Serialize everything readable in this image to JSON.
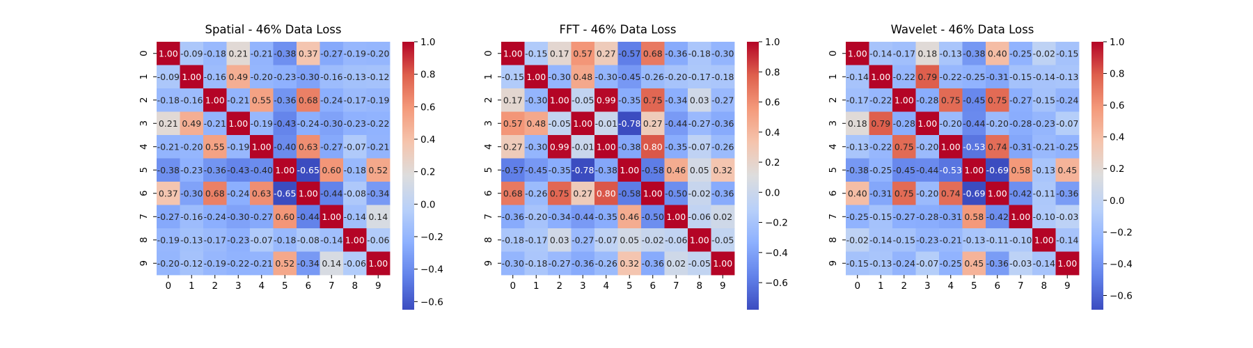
{
  "chart_data": [
    {
      "type": "heatmap",
      "title": "Spatial - 46% Data Loss",
      "x": [
        "0",
        "1",
        "2",
        "3",
        "4",
        "5",
        "6",
        "7",
        "8",
        "9"
      ],
      "y": [
        "0",
        "1",
        "2",
        "3",
        "4",
        "5",
        "6",
        "7",
        "8",
        "9"
      ],
      "values": [
        [
          1.0,
          -0.09,
          -0.18,
          0.21,
          -0.21,
          -0.38,
          0.37,
          -0.27,
          -0.19,
          -0.2
        ],
        [
          -0.09,
          1.0,
          -0.16,
          0.49,
          -0.2,
          -0.23,
          -0.3,
          -0.16,
          -0.13,
          -0.12
        ],
        [
          -0.18,
          -0.16,
          1.0,
          -0.21,
          0.55,
          -0.36,
          0.68,
          -0.24,
          -0.17,
          -0.19
        ],
        [
          0.21,
          0.49,
          -0.21,
          1.0,
          -0.19,
          -0.43,
          -0.24,
          -0.3,
          -0.23,
          -0.22
        ],
        [
          -0.21,
          -0.2,
          0.55,
          -0.19,
          1.0,
          -0.4,
          0.63,
          -0.27,
          -0.07,
          -0.21
        ],
        [
          -0.38,
          -0.23,
          -0.36,
          -0.43,
          -0.4,
          1.0,
          -0.65,
          0.6,
          -0.18,
          0.52
        ],
        [
          0.37,
          -0.3,
          0.68,
          -0.24,
          0.63,
          -0.65,
          1.0,
          -0.44,
          -0.08,
          -0.34
        ],
        [
          -0.27,
          -0.16,
          -0.24,
          -0.3,
          -0.27,
          0.6,
          -0.44,
          1.0,
          -0.14,
          0.14
        ],
        [
          -0.19,
          -0.13,
          -0.17,
          -0.23,
          -0.07,
          -0.18,
          -0.08,
          -0.14,
          1.0,
          -0.06
        ],
        [
          -0.2,
          -0.12,
          -0.19,
          -0.22,
          -0.21,
          0.52,
          -0.34,
          0.14,
          -0.06,
          1.0
        ]
      ],
      "vmin": -0.65,
      "vmax": 1.0,
      "colorbar_ticks": [
        -0.6,
        -0.4,
        -0.2,
        0.0,
        0.2,
        0.4,
        0.6,
        0.8,
        1.0
      ],
      "colorbar_labels": [
        "−0.6",
        "−0.4",
        "−0.2",
        "0.0",
        "0.2",
        "0.4",
        "0.6",
        "0.8",
        "1.0"
      ],
      "colormap": "coolwarm",
      "grid": false,
      "legend": "colorbar-right"
    },
    {
      "type": "heatmap",
      "title": "FFT - 46% Data Loss",
      "x": [
        "0",
        "1",
        "2",
        "3",
        "4",
        "5",
        "6",
        "7",
        "8",
        "9"
      ],
      "y": [
        "0",
        "1",
        "2",
        "3",
        "4",
        "5",
        "6",
        "7",
        "8",
        "9"
      ],
      "values": [
        [
          1.0,
          -0.15,
          0.17,
          0.57,
          0.27,
          -0.57,
          0.68,
          -0.36,
          -0.18,
          -0.3
        ],
        [
          -0.15,
          1.0,
          -0.3,
          0.48,
          -0.3,
          -0.45,
          -0.26,
          -0.2,
          -0.17,
          -0.18
        ],
        [
          0.17,
          -0.3,
          1.0,
          -0.05,
          0.99,
          -0.35,
          0.75,
          -0.34,
          0.03,
          -0.27
        ],
        [
          0.57,
          0.48,
          -0.05,
          1.0,
          -0.01,
          -0.78,
          0.27,
          -0.44,
          -0.27,
          -0.36
        ],
        [
          0.27,
          -0.3,
          0.99,
          -0.01,
          1.0,
          -0.38,
          0.8,
          -0.35,
          -0.07,
          -0.26
        ],
        [
          -0.57,
          -0.45,
          -0.35,
          -0.78,
          -0.38,
          1.0,
          -0.58,
          0.46,
          0.05,
          0.32
        ],
        [
          0.68,
          -0.26,
          0.75,
          0.27,
          0.8,
          -0.58,
          1.0,
          -0.5,
          -0.02,
          -0.36
        ],
        [
          -0.36,
          -0.2,
          -0.34,
          -0.44,
          -0.35,
          0.46,
          -0.5,
          1.0,
          -0.06,
          0.02
        ],
        [
          -0.18,
          -0.17,
          0.03,
          -0.27,
          -0.07,
          0.05,
          -0.02,
          -0.06,
          1.0,
          -0.05
        ],
        [
          -0.3,
          -0.18,
          -0.27,
          -0.36,
          -0.26,
          0.32,
          -0.36,
          0.02,
          -0.05,
          1.0
        ]
      ],
      "vmin": -0.78,
      "vmax": 1.0,
      "colorbar_ticks": [
        -0.6,
        -0.4,
        -0.2,
        0.0,
        0.2,
        0.4,
        0.6,
        0.8,
        1.0
      ],
      "colorbar_labels": [
        "−0.6",
        "−0.4",
        "−0.2",
        "0.0",
        "0.2",
        "0.4",
        "0.6",
        "0.8",
        "1.0"
      ],
      "colormap": "coolwarm",
      "grid": false,
      "legend": "colorbar-right"
    },
    {
      "type": "heatmap",
      "title": "Wavelet - 46% Data Loss",
      "x": [
        "0",
        "1",
        "2",
        "3",
        "4",
        "5",
        "6",
        "7",
        "8",
        "9"
      ],
      "y": [
        "0",
        "1",
        "2",
        "3",
        "4",
        "5",
        "6",
        "7",
        "8",
        "9"
      ],
      "values": [
        [
          1.0,
          -0.14,
          -0.17,
          0.18,
          -0.13,
          -0.38,
          0.4,
          -0.25,
          -0.02,
          -0.15
        ],
        [
          -0.14,
          1.0,
          -0.22,
          0.79,
          -0.22,
          -0.25,
          -0.31,
          -0.15,
          -0.14,
          -0.13
        ],
        [
          -0.17,
          -0.22,
          1.0,
          -0.28,
          0.75,
          -0.45,
          0.75,
          -0.27,
          -0.15,
          -0.24
        ],
        [
          0.18,
          0.79,
          -0.28,
          1.0,
          -0.2,
          -0.44,
          -0.2,
          -0.28,
          -0.23,
          -0.07
        ],
        [
          -0.13,
          -0.22,
          0.75,
          -0.2,
          1.0,
          -0.53,
          0.74,
          -0.31,
          -0.21,
          -0.25
        ],
        [
          -0.38,
          -0.25,
          -0.45,
          -0.44,
          -0.53,
          1.0,
          -0.69,
          0.58,
          -0.13,
          0.45
        ],
        [
          0.4,
          -0.31,
          0.75,
          -0.2,
          0.74,
          -0.69,
          1.0,
          -0.42,
          -0.11,
          -0.36
        ],
        [
          -0.25,
          -0.15,
          -0.27,
          -0.28,
          -0.31,
          0.58,
          -0.42,
          1.0,
          -0.1,
          -0.03
        ],
        [
          -0.02,
          -0.14,
          -0.15,
          -0.23,
          -0.21,
          -0.13,
          -0.11,
          -0.1,
          1.0,
          -0.14
        ],
        [
          -0.15,
          -0.13,
          -0.24,
          -0.07,
          -0.25,
          0.45,
          -0.36,
          -0.03,
          -0.14,
          1.0
        ]
      ],
      "vmin": -0.69,
      "vmax": 1.0,
      "colorbar_ticks": [
        -0.6,
        -0.4,
        -0.2,
        0.0,
        0.2,
        0.4,
        0.6,
        0.8,
        1.0
      ],
      "colorbar_labels": [
        "−0.6",
        "−0.4",
        "−0.2",
        "0.0",
        "0.2",
        "0.4",
        "0.6",
        "0.8",
        "1.0"
      ],
      "colormap": "coolwarm",
      "grid": false,
      "legend": "colorbar-right"
    }
  ]
}
